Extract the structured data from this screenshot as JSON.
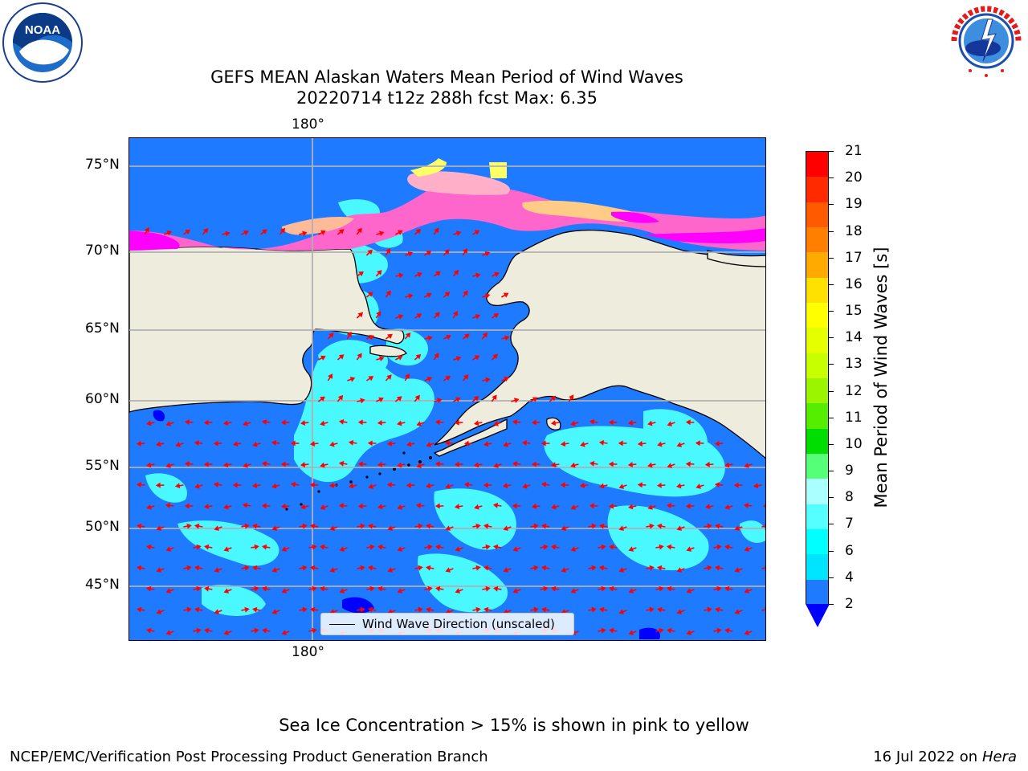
{
  "title": {
    "line1": "GEFS MEAN Alaskan Waters Mean Period of Wind Waves",
    "line2": "20220714 t12z 288h fcst    Max: 6.35"
  },
  "logos": {
    "noaa": {
      "center_text": "NOAA",
      "ring_text": "NATIONAL OCEANIC AND ATMOSPHERIC ADMINISTRATION · U.S. DEPARTMENT OF COMMERCE"
    },
    "nws": {
      "ring_text": "NATIONAL WEATHER SERVICE"
    }
  },
  "map": {
    "lon_label_top": "180°",
    "lon_label_bottom": "180°",
    "lat_labels": [
      "75°N",
      "70°N",
      "65°N",
      "60°N",
      "55°N",
      "50°N",
      "45°N"
    ],
    "legend_label": "Wind Wave Direction (unscaled)",
    "colors": {
      "land": "#eeeddd",
      "ocean_low": "#1e7aff",
      "ocean_cyan": "#00ffff",
      "ocean_lightcyan": "#4dffff",
      "deep_blue": "#0000ff",
      "ice_pink": "#ff66cc",
      "ice_magenta": "#ff00ff",
      "ice_yellow": "#ffff66",
      "arrow": "#ff0000",
      "grid": "#b0b0b0"
    }
  },
  "colorbar": {
    "title": "Mean Period of Wind Waves [s]",
    "tick_labels": [
      "21",
      "20",
      "19",
      "18",
      "17",
      "16",
      "15",
      "14",
      "13",
      "12",
      "11",
      "10",
      "9",
      "8",
      "7",
      "6",
      "4",
      "2"
    ],
    "colors": [
      "#ff0000",
      "#ff2a00",
      "#ff5a00",
      "#ff7f00",
      "#ffaa00",
      "#ffe100",
      "#ffff00",
      "#e6ff00",
      "#c8ff00",
      "#9bf500",
      "#55ee00",
      "#00dd00",
      "#55ff77",
      "#aaffff",
      "#55ffff",
      "#00ffff",
      "#00e5ff",
      "#1e7aff"
    ],
    "under_color": "#0000ff"
  },
  "footer": {
    "note": "Sea Ice Concentration > 15% is shown in pink to yellow",
    "left": "NCEP/EMC/Verification Post Processing Product Generation Branch",
    "right_date": "16 Jul 2022 on",
    "right_host": "Hera"
  }
}
